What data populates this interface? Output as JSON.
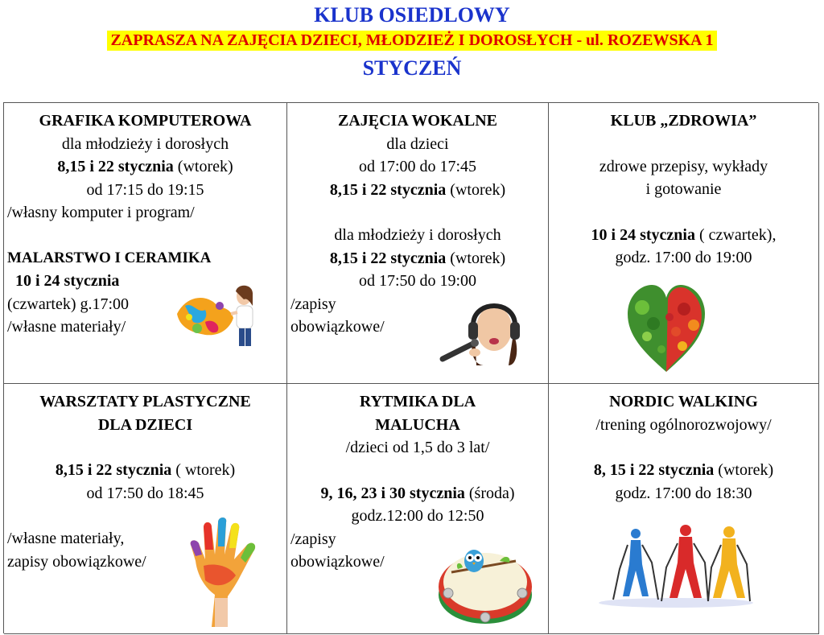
{
  "header": {
    "title": "KLUB OSIEDLOWY",
    "subtitle": "ZAPRASZA  NA  ZAJĘCIA  DZIECI, MŁODZIEŻ  I  DOROSŁYCH - ul. ROZEWSKA 1",
    "month": "STYCZEŃ"
  },
  "cells": {
    "grafika": {
      "title": "GRAFIKA KOMPUTEROWA",
      "audience": "dla młodzieży i dorosłych",
      "dates_bold": "8,15 i 22 stycznia",
      "dates_rest": " (wtorek)",
      "time": "od 17:15 do 19:15",
      "note": "/własny komputer i program/",
      "sub_title": "MALARSTWO  I  CERAMIKA",
      "sub_dates_bold": "10 i 24 stycznia",
      "sub_day": "(czwartek) g.17:00",
      "sub_note": "/własne materiały/"
    },
    "wokalne": {
      "title": "ZAJĘCIA WOKALNE",
      "audience1": "dla dzieci",
      "time1": "od 17:00 do 17:45",
      "dates1_bold": "8,15 i 22 stycznia",
      "dates1_rest": " (wtorek)",
      "audience2": "dla młodzieży i dorosłych",
      "dates2_bold": "8,15 i 22 stycznia",
      "dates2_rest": " (wtorek)",
      "time2": "od 17:50 do 19:00",
      "note1": "/zapisy",
      "note2": "obowiązkowe/"
    },
    "zdrowia": {
      "title": "KLUB „ZDROWIA”",
      "desc1": "zdrowe przepisy, wykłady",
      "desc2": "i gotowanie",
      "dates_bold": "10 i 24 stycznia",
      "dates_rest": " ( czwartek),",
      "time": "godz. 17:00 do 19:00"
    },
    "plastyczne": {
      "title1": "WARSZTATY PLASTYCZNE",
      "title2": "DLA  DZIECI",
      "dates_bold": "8,15 i 22 stycznia",
      "dates_rest": " ( wtorek)",
      "time": "od 17:50 do 18:45",
      "note1": "/własne materiały,",
      "note2": "zapisy obowiązkowe/"
    },
    "rytmika": {
      "title1": "RYTMIKA  DLA",
      "title2": "MALUCHA",
      "age": "/dzieci od 1,5 do 3 lat/",
      "dates_bold": "9, 16, 23 i 30 stycznia",
      "dates_rest": " (środa)",
      "time": "godz.12:00 do 12:50",
      "note1": "/zapisy",
      "note2": "obowiązkowe/"
    },
    "nordic": {
      "title": "NORDIC  WALKING",
      "desc": "/trening ogólnorozwojowy/",
      "dates_bold": "8, 15 i 22 stycznia",
      "dates_rest": " (wtorek)",
      "time": "godz. 17:00 do 18:30"
    }
  },
  "colors": {
    "title_blue": "#1a33cc",
    "subtitle_red": "#dd0000",
    "highlight_yellow": "#ffff00"
  }
}
